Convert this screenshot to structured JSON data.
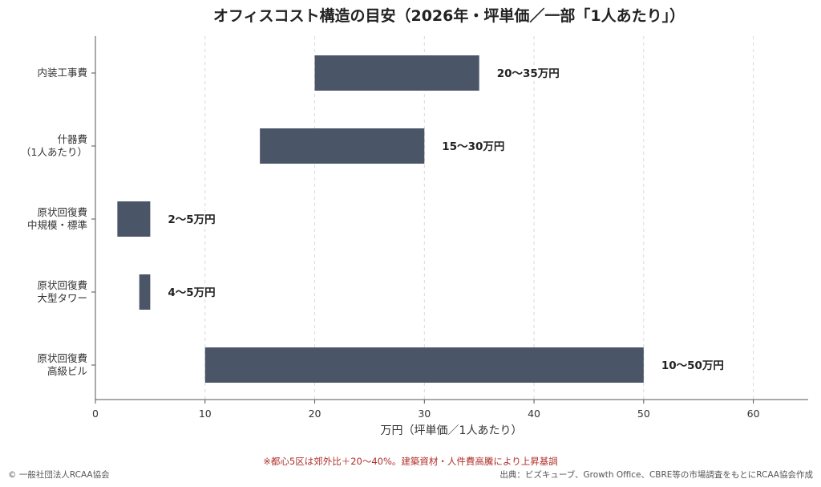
{
  "chart_data": {
    "type": "bar",
    "orientation": "horizontal-range",
    "title": "オフィスコスト構造の目安（2026年・坪単価／一部「1人あたり」）",
    "xlabel": "万円（坪単価／1人あたり）",
    "ylabel": "",
    "xlim": [
      0,
      65
    ],
    "xticks": [
      0,
      10,
      20,
      30,
      40,
      50,
      60
    ],
    "grid": "x-dashed",
    "bar_color": "#4a5568",
    "categories": [
      [
        "内装工事費"
      ],
      [
        "什器費",
        "（1人あたり）"
      ],
      [
        "原状回復費",
        "中規模・標準"
      ],
      [
        "原状回復費",
        "大型タワー"
      ],
      [
        "原状回復費",
        "高級ビル"
      ]
    ],
    "ranges": [
      {
        "low": 20,
        "high": 35,
        "label": "20〜35万円"
      },
      {
        "low": 15,
        "high": 30,
        "label": "15〜30万円"
      },
      {
        "low": 2,
        "high": 5,
        "label": "2〜5万円"
      },
      {
        "low": 4,
        "high": 5,
        "label": "4〜5万円"
      },
      {
        "low": 10,
        "high": 50,
        "label": "10〜50万円"
      }
    ]
  },
  "footer": {
    "note": "※都心5区は郊外比＋20〜40%。建築資材・人件費高騰により上昇基調",
    "copyright": "© 一般社団法人RCAA協会",
    "source": "出典：ビズキューブ、Growth Office、CBRE等の市場調査をもとにRCAA協会作成"
  }
}
